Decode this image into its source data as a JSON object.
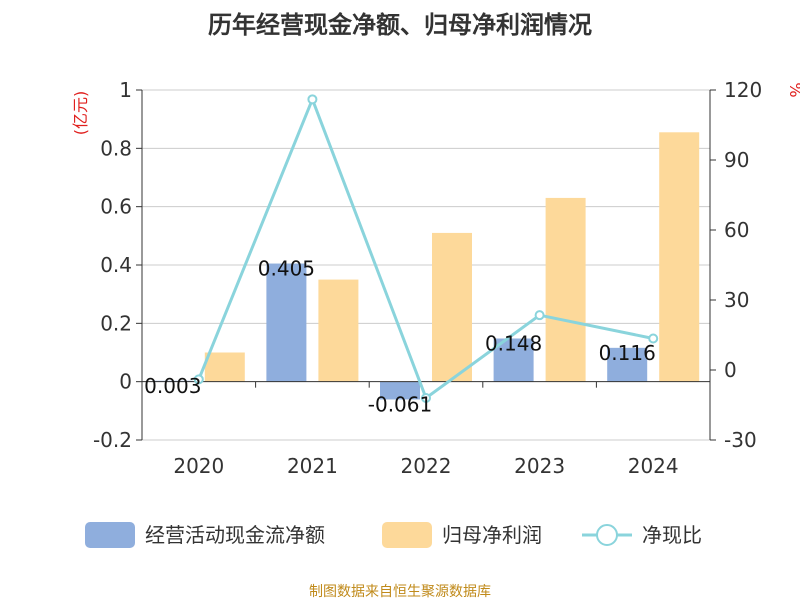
{
  "chart_data": {
    "type": "bar",
    "title": "历年经营现金净额、归母净利润情况",
    "categories": [
      "2020",
      "2021",
      "2022",
      "2023",
      "2024"
    ],
    "series": [
      {
        "name": "经营活动现金流净额",
        "type": "bar",
        "axis": "left",
        "color": "#8faedd",
        "values": [
          0.003,
          0.405,
          -0.061,
          0.148,
          0.116
        ],
        "labels": [
          "0.003",
          "0.405",
          "-0.061",
          "0.148",
          "0.116"
        ]
      },
      {
        "name": "归母净利润",
        "type": "bar",
        "axis": "left",
        "color": "#fdd99a",
        "values": [
          0.1,
          0.35,
          0.51,
          0.63,
          0.855
        ]
      },
      {
        "name": "净现比",
        "type": "line",
        "axis": "right",
        "color": "#8ad4dc",
        "values": [
          -4,
          116,
          -12,
          23.5,
          13.5
        ]
      }
    ],
    "y_left": {
      "unit": "(亿元)",
      "ylim": [
        -0.2,
        1
      ],
      "ticks": [
        "-0.2",
        "0",
        "0.2",
        "0.4",
        "0.6",
        "0.8",
        "1"
      ]
    },
    "y_right": {
      "unit": "%",
      "ylim": [
        -30,
        120
      ],
      "ticks": [
        "-30",
        "0",
        "30",
        "60",
        "90",
        "120"
      ]
    },
    "grid": true,
    "legend_position": "bottom"
  },
  "source": "制图数据来自恒生聚源数据库"
}
